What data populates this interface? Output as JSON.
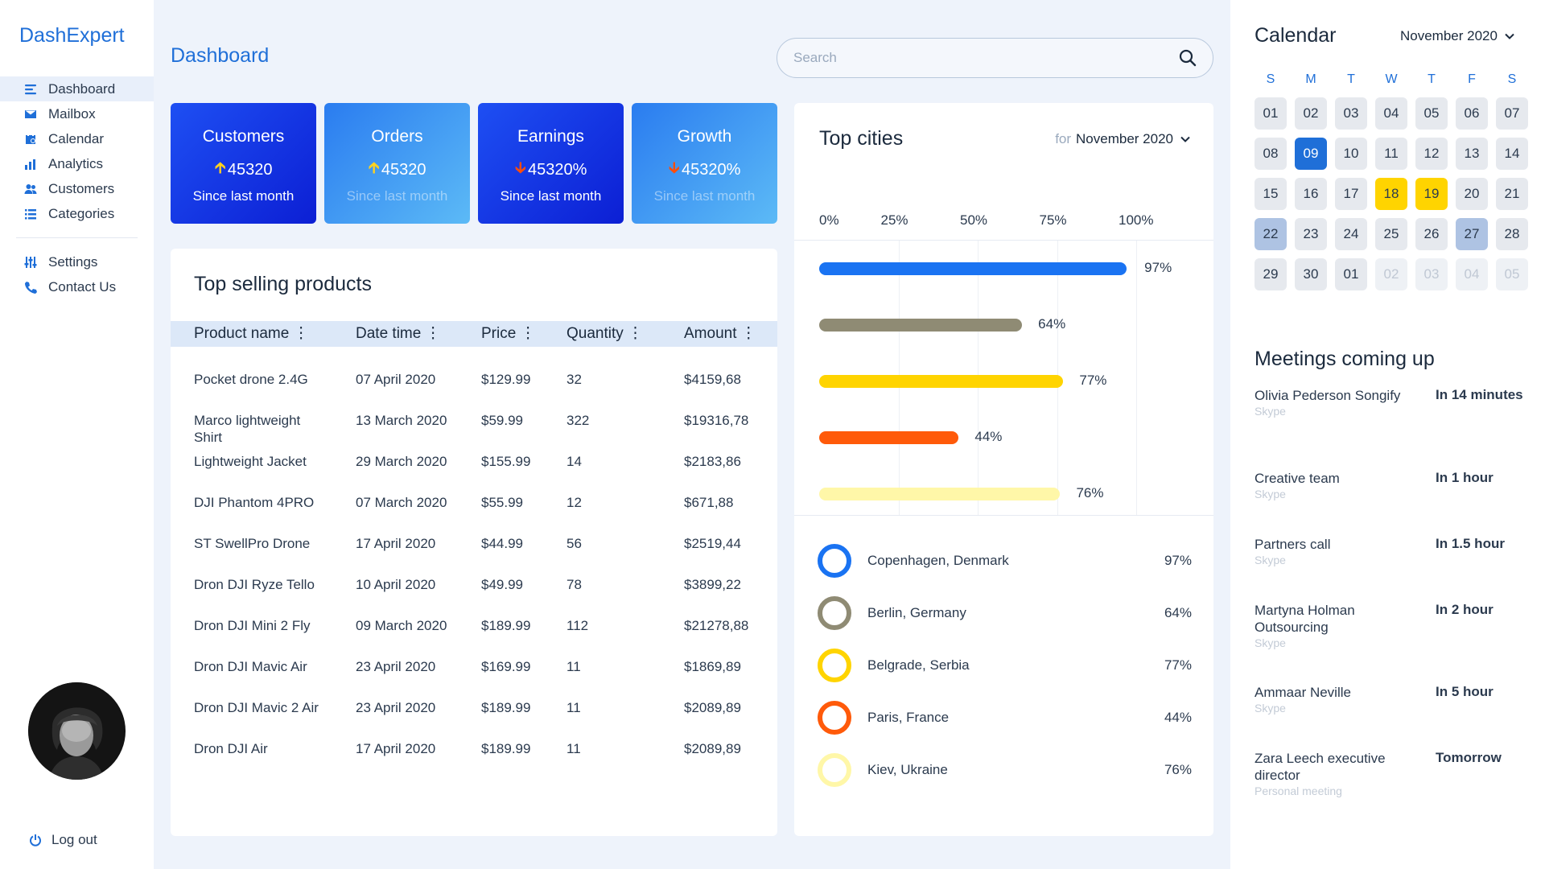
{
  "app": {
    "brand": "DashExpert",
    "page_title": "Dashboard"
  },
  "sidebar": {
    "items": [
      {
        "label": "Dashboard",
        "icon": "dashboard-icon",
        "active": true
      },
      {
        "label": "Mailbox",
        "icon": "mail-icon"
      },
      {
        "label": "Calendar",
        "icon": "calendar-icon"
      },
      {
        "label": "Analytics",
        "icon": "analytics-icon"
      },
      {
        "label": "Customers",
        "icon": "users-icon"
      },
      {
        "label": "Categories",
        "icon": "list-icon"
      }
    ],
    "secondary": [
      {
        "label": "Settings",
        "icon": "sliders-icon"
      },
      {
        "label": "Contact Us",
        "icon": "phone-icon"
      }
    ],
    "logout_label": "Log out"
  },
  "search": {
    "placeholder": "Search",
    "value": ""
  },
  "stats": [
    {
      "title": "Customers",
      "value": "45320",
      "trend": "up",
      "caption": "Since last month"
    },
    {
      "title": "Orders",
      "value": "45320",
      "trend": "up",
      "caption": "Since last month"
    },
    {
      "title": "Earnings",
      "value": "45320%",
      "trend": "down",
      "caption": "Since last month"
    },
    {
      "title": "Growth",
      "value": "45320%",
      "trend": "down",
      "caption": "Since last month"
    }
  ],
  "products": {
    "title": "Top selling products",
    "columns": [
      "Product name",
      "Date time",
      "Price",
      "Quantity",
      "Amount"
    ],
    "rows": [
      [
        "Pocket drone 2.4G",
        "07 April 2020",
        "$129.99",
        "32",
        "$4159,68"
      ],
      [
        "Marco lightweight Shirt",
        "13 March 2020",
        "$59.99",
        "322",
        "$19316,78"
      ],
      [
        "Lightweight Jacket",
        "29 March 2020",
        "$155.99",
        "14",
        "$2183,86"
      ],
      [
        "DJI Phantom 4PRO",
        "07 March 2020",
        "$55.99",
        "12",
        "$671,88"
      ],
      [
        "ST SwellPro Drone",
        "17 April 2020",
        "$44.99",
        "56",
        "$2519,44"
      ],
      [
        "Dron DJI Ryze Tello",
        "10 April 2020",
        "$49.99",
        "78",
        "$3899,22"
      ],
      [
        "Dron DJI Mini 2 Fly",
        "09 March 2020",
        "$189.99",
        "112",
        "$21278,88"
      ],
      [
        "Dron DJI Mavic Air",
        "23 April 2020",
        "$169.99",
        "11",
        "$1869,89"
      ],
      [
        "Dron DJI Mavic 2 Air",
        "23 April 2020",
        "$189.99",
        "11",
        "$2089,89"
      ],
      [
        "Dron DJI Air",
        "17 April 2020",
        "$189.99",
        "11",
        "$2089,89"
      ]
    ]
  },
  "cities": {
    "title": "Top cities",
    "period_prefix": "for",
    "period": "November 2020",
    "list": [
      {
        "name": "Copenhagen, Denmark",
        "pct": "97%"
      },
      {
        "name": "Berlin, Germany",
        "pct": "64%"
      },
      {
        "name": "Belgrade, Serbia",
        "pct": "77%"
      },
      {
        "name": "Paris, France",
        "pct": "44%"
      },
      {
        "name": "Kiev, Ukraine",
        "pct": "76%"
      }
    ]
  },
  "chart_data": {
    "type": "bar",
    "orientation": "horizontal",
    "categories": [
      "Copenhagen, Denmark",
      "Berlin, Germany",
      "Belgrade, Serbia",
      "Paris, France",
      "Kiev, Ukraine"
    ],
    "values": [
      97,
      64,
      77,
      44,
      76
    ],
    "value_labels": [
      "97%",
      "64%",
      "77%",
      "44%",
      "76%"
    ],
    "colors": [
      "#1a73f2",
      "#8f8b74",
      "#ffd400",
      "#ff5a0a",
      "#fff7a8"
    ],
    "xticks": [
      "0%",
      "25%",
      "50%",
      "75%",
      "100%"
    ],
    "xlim": [
      0,
      100
    ],
    "grid": true
  },
  "calendar": {
    "title": "Calendar",
    "month": "November 2020",
    "weekdays": [
      "S",
      "M",
      "T",
      "W",
      "T",
      "F",
      "S"
    ],
    "days": [
      {
        "d": "01"
      },
      {
        "d": "02"
      },
      {
        "d": "03"
      },
      {
        "d": "04"
      },
      {
        "d": "05"
      },
      {
        "d": "06"
      },
      {
        "d": "07"
      },
      {
        "d": "08"
      },
      {
        "d": "09",
        "s": "sel"
      },
      {
        "d": "10"
      },
      {
        "d": "11"
      },
      {
        "d": "12"
      },
      {
        "d": "13"
      },
      {
        "d": "14"
      },
      {
        "d": "15"
      },
      {
        "d": "16"
      },
      {
        "d": "17"
      },
      {
        "d": "18",
        "s": "hl"
      },
      {
        "d": "19",
        "s": "hl"
      },
      {
        "d": "20"
      },
      {
        "d": "21"
      },
      {
        "d": "22",
        "s": "wk"
      },
      {
        "d": "23"
      },
      {
        "d": "24"
      },
      {
        "d": "25"
      },
      {
        "d": "26"
      },
      {
        "d": "27",
        "s": "wk"
      },
      {
        "d": "28"
      },
      {
        "d": "29"
      },
      {
        "d": "30"
      },
      {
        "d": "01"
      },
      {
        "d": "02",
        "s": "muted"
      },
      {
        "d": "03",
        "s": "muted"
      },
      {
        "d": "04",
        "s": "muted"
      },
      {
        "d": "05",
        "s": "muted"
      }
    ]
  },
  "meetings": {
    "title": "Meetings coming up",
    "items": [
      {
        "who": "Olivia Pederson Songify",
        "via": "Skype",
        "when": "In 14 minutes"
      },
      {
        "who": "Creative team",
        "via": "Skype",
        "when": "In 1 hour"
      },
      {
        "who": "Partners call",
        "via": "Skype",
        "when": "In 1.5 hour"
      },
      {
        "who": "Martyna Holman Outsourcing",
        "via": "Skype",
        "when": "In 2 hour"
      },
      {
        "who": "Ammaar Neville",
        "via": "Skype",
        "when": "In 5 hour"
      },
      {
        "who": "Zara Leech executive director",
        "via": "Personal meeting",
        "when": "Tomorrow"
      }
    ]
  }
}
